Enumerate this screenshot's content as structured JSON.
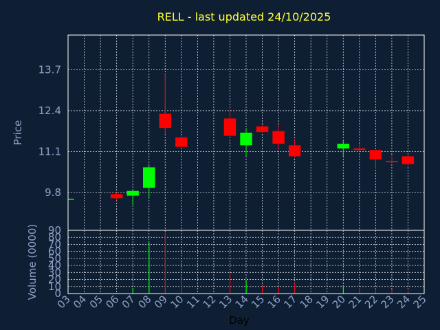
{
  "chart_data": {
    "type": "candlestick",
    "title": "RELL - last updated 24/10/2025",
    "xlabel": "Day",
    "price_panel": {
      "ylabel": "Price",
      "ylim": [
        8.6,
        14.8
      ],
      "yticks": [
        "9.8",
        "11.1",
        "12.4",
        "13.7"
      ]
    },
    "volume_panel": {
      "ylabel": "Volume (0000)",
      "ylim": [
        0,
        90
      ],
      "yticks": [
        "0",
        "10",
        "20",
        "30",
        "40",
        "50",
        "60",
        "70",
        "80",
        "90"
      ]
    },
    "xlim": [
      3,
      25
    ],
    "xticks": [
      "03",
      "04",
      "05",
      "06",
      "07",
      "08",
      "09",
      "10",
      "11",
      "12",
      "13",
      "14",
      "15",
      "16",
      "17",
      "18",
      "19",
      "20",
      "21",
      "22",
      "23",
      "24",
      "25"
    ],
    "colors": {
      "up": "#00ff00",
      "down": "#ff0000",
      "background": "#0f1f33",
      "title": "#ffff33",
      "axis_text": "#8ea2c8"
    },
    "candles": [
      {
        "day": 3,
        "open": 9.6,
        "high": 9.6,
        "low": 9.6,
        "close": 9.6,
        "volume": 0
      },
      {
        "day": 6,
        "open": 9.75,
        "high": 9.8,
        "low": 9.55,
        "close": 9.62,
        "volume": 1
      },
      {
        "day": 7,
        "open": 9.7,
        "high": 9.9,
        "low": 9.4,
        "close": 9.85,
        "volume": 8
      },
      {
        "day": 8,
        "open": 9.95,
        "high": 10.65,
        "low": 9.65,
        "close": 10.6,
        "volume": 73
      },
      {
        "day": 9,
        "open": 12.3,
        "high": 13.6,
        "low": 11.65,
        "close": 11.85,
        "volume": 87
      },
      {
        "day": 10,
        "open": 11.55,
        "high": 11.55,
        "low": 11.25,
        "close": 11.25,
        "volume": 22
      },
      {
        "day": 13,
        "open": 12.15,
        "high": 12.45,
        "low": 11.55,
        "close": 11.6,
        "volume": 28
      },
      {
        "day": 14,
        "open": 11.3,
        "high": 11.85,
        "low": 10.95,
        "close": 11.7,
        "volume": 18
      },
      {
        "day": 15,
        "open": 11.9,
        "high": 11.95,
        "low": 11.7,
        "close": 11.72,
        "volume": 11
      },
      {
        "day": 16,
        "open": 11.75,
        "high": 11.95,
        "low": 11.2,
        "close": 11.35,
        "volume": 9
      },
      {
        "day": 17,
        "open": 11.3,
        "high": 11.5,
        "low": 10.9,
        "close": 10.95,
        "volume": 15
      },
      {
        "day": 20,
        "open": 11.2,
        "high": 11.45,
        "low": 10.95,
        "close": 11.35,
        "volume": 12
      },
      {
        "day": 21,
        "open": 11.2,
        "high": 11.35,
        "low": 11.1,
        "close": 11.15,
        "volume": 8
      },
      {
        "day": 22,
        "open": 11.15,
        "high": 11.15,
        "low": 10.55,
        "close": 10.85,
        "volume": 7
      },
      {
        "day": 23,
        "open": 10.8,
        "high": 11.0,
        "low": 10.75,
        "close": 10.76,
        "volume": 6
      },
      {
        "day": 24,
        "open": 10.95,
        "high": 10.95,
        "low": 10.65,
        "close": 10.7,
        "volume": 4
      }
    ]
  }
}
